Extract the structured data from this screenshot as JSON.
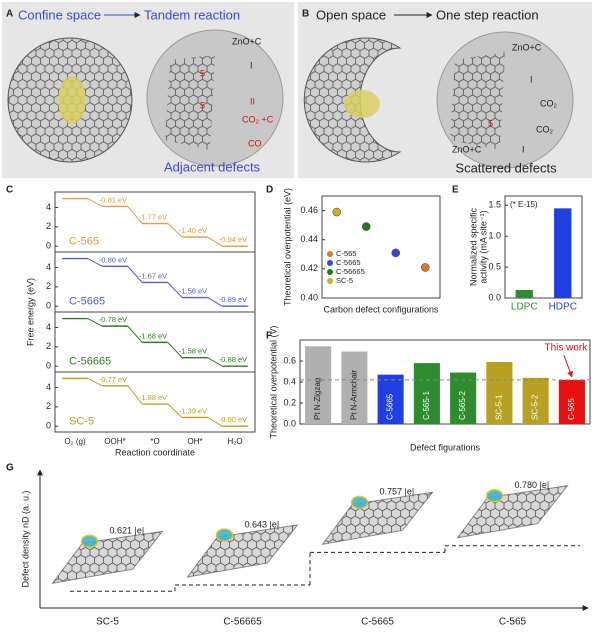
{
  "panel_labels": [
    "A",
    "B",
    "C",
    "D",
    "E",
    "F",
    "G"
  ],
  "illustrations": {
    "A": {
      "heading_left": "Confine space",
      "heading_right": "Tandem reaction",
      "labels": [
        "ZnO+C",
        "I",
        "5",
        "5",
        "II",
        "CO₂ +C",
        "CO"
      ],
      "caption": "Adjacent defects"
    },
    "B": {
      "heading_left": "Open space",
      "heading_right": "One step reaction",
      "labels": [
        "ZnO+C",
        "I",
        "CO₂",
        "5",
        "CO₂",
        "ZnO+C",
        "I"
      ],
      "caption": "Scattered defects"
    }
  },
  "chart_data": [
    {
      "type": "energy_diagram",
      "ylabel": "Free energy (eV)",
      "xlabel": "Reaction coordinate",
      "categories": [
        "O₂ (g)",
        "OOH*",
        "*O",
        "OH*",
        "H₂O"
      ],
      "ylim": [
        -0.6,
        5.6
      ],
      "yticks": [
        0,
        2,
        4
      ],
      "series": [
        {
          "name": "C-565",
          "color": "#e39a4a",
          "values": [
            4.92,
            4.11,
            2.34,
            0.94,
            0
          ],
          "step_values": [
            -0.81,
            -1.77,
            -1.4,
            -0.94
          ],
          "step_labels": [
            "-0.81 eV",
            "-1.77 eV",
            "-1.40 eV",
            "-0.94 eV"
          ]
        },
        {
          "name": "C-5665",
          "color": "#4f5bd5",
          "values": [
            4.92,
            4.12,
            2.45,
            0.89,
            0
          ],
          "step_values": [
            -0.8,
            -1.67,
            -1.56,
            -0.89
          ],
          "step_labels": [
            "-0.80 eV",
            "-1.67 eV",
            "-1.56 eV",
            "-0.89 eV"
          ]
        },
        {
          "name": "C-56665",
          "color": "#2e7d23",
          "values": [
            4.92,
            4.14,
            2.46,
            0.88,
            0
          ],
          "step_values": [
            -0.78,
            -1.68,
            -1.58,
            -0.88
          ],
          "step_labels": [
            "-0.78 eV",
            "-1.68 eV",
            "-1.58 eV",
            "-0.88 eV"
          ]
        },
        {
          "name": "SC-5",
          "color": "#b5a028",
          "values": [
            4.94,
            4.17,
            2.29,
            0.9,
            0
          ],
          "step_values": [
            -0.77,
            -1.88,
            -1.39,
            -0.9
          ],
          "step_labels": [
            "-0.77 eV",
            "-1.88 eV",
            "-1.39 eV",
            "-0.90 eV"
          ]
        }
      ]
    },
    {
      "type": "scatter",
      "ylabel": "Theoretical overpotential (eV)",
      "xlabel": "Carbon defect configurations",
      "categories": [
        null,
        null,
        null,
        null
      ],
      "ylim": [
        0.4,
        0.47
      ],
      "yticks": [
        {
          "value": 0.4,
          "label": "0.40"
        },
        0.42,
        0.44,
        0.46
      ],
      "series": [
        {
          "name": "C-565",
          "color": "#e0792a",
          "values": [
            null,
            null,
            null,
            0.421
          ]
        },
        {
          "name": "C-5665",
          "color": "#3c46c8",
          "values": [
            null,
            null,
            0.431,
            null
          ]
        },
        {
          "name": "C-56665",
          "color": "#1f7a1f",
          "values": [
            null,
            0.449,
            null,
            null
          ]
        },
        {
          "name": "SC-5",
          "color": "#c8b020",
          "values": [
            0.459,
            null,
            null,
            null
          ]
        }
      ]
    },
    {
      "type": "bar",
      "ylabel": [
        "Normalized specific",
        "activity (mA site⁻¹)"
      ],
      "annotation": "(* E-15)",
      "categories": [
        "LDPC",
        "HDPC"
      ],
      "values": [
        0.13,
        1.45
      ],
      "colors": [
        "#2e8b2e",
        "#1f3fe0"
      ],
      "ylim": [
        0,
        1.65
      ],
      "yticks": [
        {
          "value": 0,
          "label": "0.0"
        },
        0.5,
        {
          "value": 1,
          "label": "1.0"
        },
        1.5
      ]
    },
    {
      "type": "bar",
      "ylabel": [
        "Theoretical overpotential (V)"
      ],
      "xlabel": "Defect figurations",
      "annotation": "This work",
      "labels_inside": true,
      "categories": [
        "Pt N-Zigzag",
        "Pt N-Armchair",
        "C-5665",
        "C-565-1",
        "C-565-2",
        "SC-5-1",
        "SC-5-2",
        "C-565"
      ],
      "values": [
        0.74,
        0.69,
        0.47,
        0.58,
        0.49,
        0.59,
        0.44,
        0.42
      ],
      "colors": [
        "#b0b0b0",
        "#b0b0b0",
        "#1f3fe0",
        "#2e8b2e",
        "#2e8b2e",
        "#b8a020",
        "#b8a020",
        "#e81010"
      ],
      "ylim": [
        0,
        0.8
      ],
      "yticks": [
        {
          "value": 0,
          "label": "0.0"
        },
        0.2,
        0.4,
        0.6
      ],
      "reference_line": 0.42
    },
    {
      "type": "step",
      "ylabel": "Defect density nD (a. u.)",
      "categories": [
        "SC-5",
        "C-56665",
        "C-5665",
        "C-565"
      ],
      "values": [
        0.621,
        0.643,
        0.757,
        0.78
      ],
      "value_labels": [
        "0.621 |e|",
        "0.643 |e|",
        "0.757 |e|",
        "0.780 |e|"
      ],
      "ylim": [
        0.58,
        0.8
      ]
    }
  ]
}
